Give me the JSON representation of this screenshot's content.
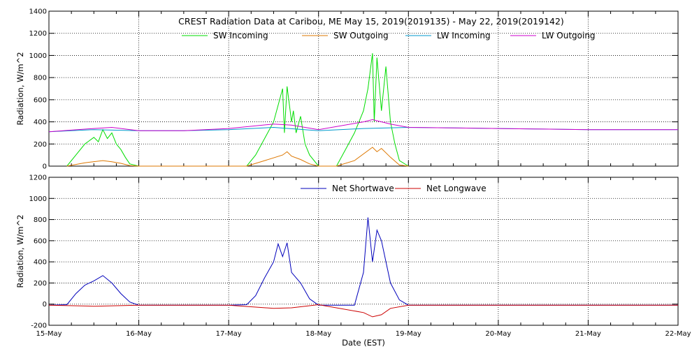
{
  "chart_data": [
    {
      "type": "line",
      "title": "CREST Radiation Data at Caribou, ME   May 15, 2019(2019135) - May 22, 2019(2019142)",
      "ylabel": "Radiation, W/m^2",
      "xlabel": "",
      "ylim": [
        0,
        1400
      ],
      "yticks": [
        "0",
        "200",
        "400",
        "600",
        "800",
        "1000",
        "1200",
        "1400"
      ],
      "xlim": [
        0,
        7
      ],
      "grid": true,
      "legend_position": "top",
      "series": [
        {
          "name": "SW Incoming",
          "color": "#00dd00",
          "x": [
            0.2,
            0.3,
            0.4,
            0.5,
            0.55,
            0.6,
            0.65,
            0.7,
            0.75,
            0.8,
            0.85,
            0.9,
            1.0,
            2.2,
            2.3,
            2.4,
            2.5,
            2.55,
            2.6,
            2.62,
            2.65,
            2.7,
            2.72,
            2.75,
            2.8,
            2.85,
            2.9,
            3.0,
            3.2,
            3.3,
            3.4,
            3.5,
            3.55,
            3.6,
            3.62,
            3.65,
            3.7,
            3.75,
            3.8,
            3.85,
            3.9,
            4.0
          ],
          "y": [
            0,
            100,
            200,
            260,
            220,
            330,
            250,
            300,
            200,
            150,
            80,
            20,
            0,
            0,
            100,
            250,
            400,
            550,
            700,
            300,
            720,
            400,
            500,
            300,
            450,
            200,
            100,
            0,
            0,
            150,
            300,
            500,
            700,
            1020,
            400,
            980,
            500,
            900,
            400,
            200,
            50,
            0
          ]
        },
        {
          "name": "SW Outgoing",
          "color": "#dd7700",
          "x": [
            0.2,
            0.4,
            0.6,
            0.7,
            0.8,
            0.9,
            1.0,
            2.2,
            2.4,
            2.6,
            2.65,
            2.7,
            2.8,
            2.9,
            3.0,
            3.2,
            3.4,
            3.6,
            3.65,
            3.7,
            3.8,
            3.9,
            4.0
          ],
          "y": [
            0,
            30,
            50,
            40,
            25,
            5,
            0,
            0,
            50,
            100,
            130,
            90,
            60,
            20,
            0,
            0,
            50,
            170,
            130,
            160,
            80,
            10,
            0
          ]
        },
        {
          "name": "LW Incoming",
          "color": "#0099cc",
          "x": [
            0.0,
            0.5,
            1.0,
            1.5,
            2.0,
            2.5,
            3.0,
            3.5,
            4.0,
            4.5,
            5.0,
            5.5,
            6.0,
            6.5,
            7.0
          ],
          "y": [
            310,
            330,
            320,
            320,
            330,
            350,
            320,
            340,
            350,
            345,
            340,
            335,
            330,
            330,
            330
          ]
        },
        {
          "name": "LW Outgoing",
          "color": "#cc00cc",
          "x": [
            0.0,
            0.5,
            0.7,
            1.0,
            1.5,
            2.0,
            2.5,
            2.7,
            3.0,
            3.5,
            3.6,
            3.8,
            4.0,
            4.5,
            5.0,
            5.5,
            6.0,
            6.5,
            7.0
          ],
          "y": [
            310,
            340,
            350,
            320,
            320,
            340,
            380,
            370,
            330,
            400,
            420,
            380,
            350,
            345,
            340,
            335,
            330,
            330,
            330
          ]
        }
      ]
    },
    {
      "type": "line",
      "title": "",
      "ylabel": "Radiation, W/m^2",
      "xlabel": "Date (EST)",
      "ylim": [
        -200,
        1200
      ],
      "yticks": [
        "-200",
        "0",
        "200",
        "400",
        "600",
        "800",
        "1000",
        "1200"
      ],
      "xlim": [
        0,
        7
      ],
      "grid": true,
      "legend_position": "top",
      "x_tick_labels": [
        "15-May",
        "16-May",
        "17-May",
        "18-May",
        "19-May",
        "20-May",
        "21-May",
        "22-May"
      ],
      "series": [
        {
          "name": "Net Shortwave",
          "color": "#0000bb",
          "x": [
            0.0,
            0.2,
            0.3,
            0.4,
            0.5,
            0.6,
            0.7,
            0.8,
            0.9,
            1.0,
            2.0,
            2.2,
            2.3,
            2.4,
            2.5,
            2.55,
            2.6,
            2.65,
            2.7,
            2.8,
            2.9,
            3.0,
            3.4,
            3.5,
            3.55,
            3.6,
            3.65,
            3.7,
            3.8,
            3.9,
            4.0,
            5.0,
            6.0,
            7.0
          ],
          "y": [
            -10,
            -5,
            100,
            180,
            220,
            270,
            200,
            100,
            20,
            -10,
            -10,
            -5,
            80,
            250,
            400,
            570,
            450,
            580,
            300,
            200,
            50,
            -10,
            -10,
            300,
            820,
            400,
            700,
            600,
            200,
            40,
            -10,
            -10,
            -10,
            -10
          ]
        },
        {
          "name": "Net Longwave",
          "color": "#cc0000",
          "x": [
            0.0,
            0.5,
            1.0,
            2.0,
            2.5,
            2.7,
            3.0,
            3.5,
            3.6,
            3.7,
            3.8,
            4.0,
            5.0,
            6.0,
            7.0
          ],
          "y": [
            -10,
            -20,
            -10,
            -10,
            -40,
            -35,
            -5,
            -80,
            -120,
            -100,
            -40,
            -10,
            -10,
            -10,
            -10
          ]
        }
      ]
    }
  ]
}
